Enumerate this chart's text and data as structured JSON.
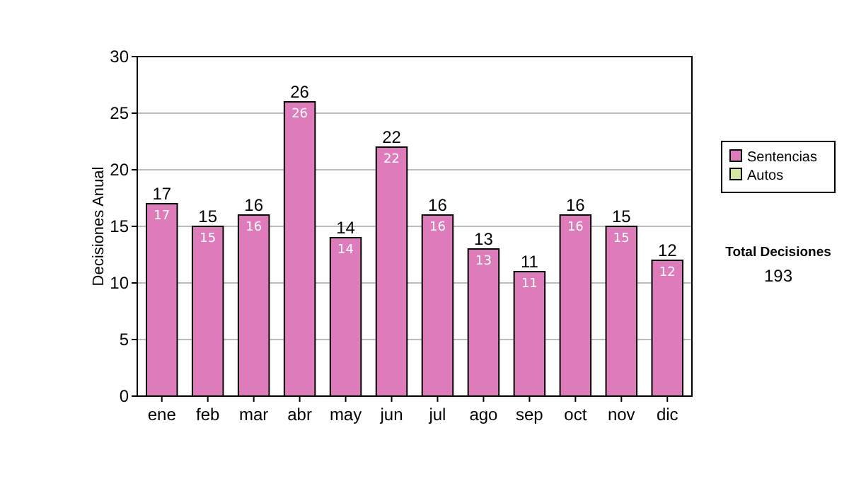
{
  "chart_data": {
    "type": "bar",
    "stacked": true,
    "ylabel": "Decisiones Anual",
    "categories": [
      "ene",
      "feb",
      "mar",
      "abr",
      "may",
      "jun",
      "jul",
      "ago",
      "sep",
      "oct",
      "nov",
      "dic"
    ],
    "series": [
      {
        "name": "Sentencias",
        "color": "#dd7bbb",
        "values": [
          17,
          15,
          16,
          26,
          14,
          22,
          16,
          13,
          11,
          16,
          15,
          12
        ]
      },
      {
        "name": "Autos",
        "color": "#d4e8a0",
        "values": [
          null,
          null,
          null,
          null,
          null,
          null,
          null,
          null,
          null,
          null,
          null,
          null
        ]
      }
    ],
    "data_labels": true,
    "totals": [
      "17",
      "15",
      "16",
      "26",
      "14",
      "22",
      "16",
      "13",
      "11",
      "16",
      "15",
      "12"
    ],
    "ylim": [
      0,
      30
    ],
    "yticks": [
      0,
      5,
      10,
      15,
      20,
      25,
      30
    ],
    "grid": "y",
    "legend": "right",
    "annotations": [
      "Total Decisiones",
      "193"
    ]
  }
}
